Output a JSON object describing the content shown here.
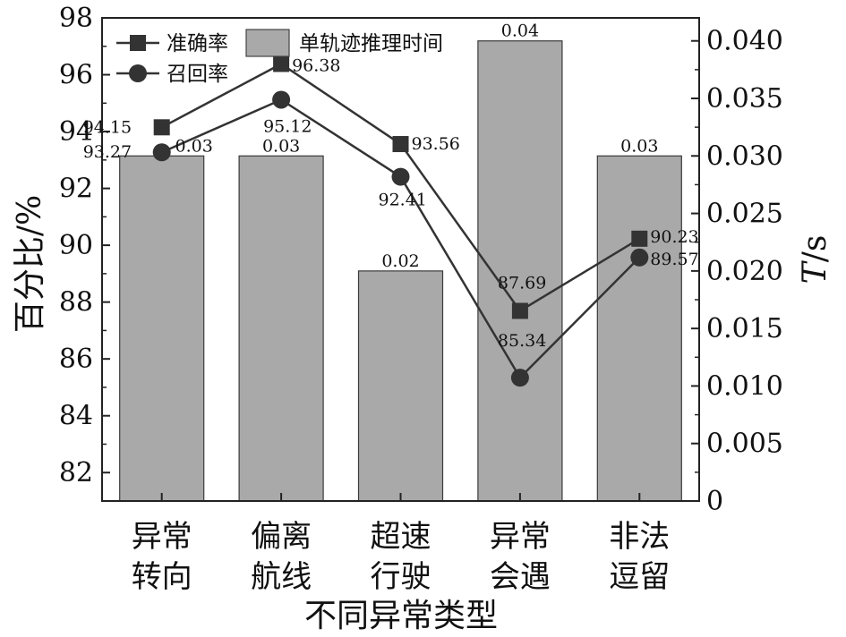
{
  "chart_data": {
    "type": "bar+line",
    "xlabel": "不同异常类型",
    "ylabel_left": "百分比/%",
    "ylabel_right_italic": "T",
    "ylabel_right_unit": "/s",
    "categories": [
      [
        "异常",
        "转向"
      ],
      [
        "偏离",
        "航线"
      ],
      [
        "超速",
        "行驶"
      ],
      [
        "异常",
        "会遇"
      ],
      [
        "非法",
        "逗留"
      ]
    ],
    "left_axis": {
      "min": 81,
      "max": 98,
      "ticks": [
        82,
        84,
        86,
        88,
        90,
        92,
        94,
        96,
        98
      ]
    },
    "right_axis": {
      "min": 0,
      "max": 0.042,
      "ticks": [
        "0",
        "0.005",
        "0.010",
        "0.015",
        "0.020",
        "0.025",
        "0.030",
        "0.035",
        "0.040"
      ]
    },
    "bars": {
      "name": "单轨迹推理时间",
      "values": [
        0.03,
        0.03,
        0.02,
        0.04,
        0.03
      ],
      "labels": [
        "0.03",
        "0.03",
        "0.02",
        "0.04",
        "0.03"
      ],
      "color": "#a9a9a9"
    },
    "series": [
      {
        "name": "准确率",
        "marker": "square",
        "values": [
          94.15,
          96.38,
          93.56,
          87.69,
          90.23
        ],
        "labels": [
          "94.15",
          "96.38",
          "93.56",
          "87.69",
          "90.23"
        ],
        "color": "#333333"
      },
      {
        "name": "召回率",
        "marker": "circle",
        "values": [
          93.27,
          95.12,
          92.41,
          85.34,
          89.57
        ],
        "labels": [
          "93.27",
          "95.12",
          "92.41",
          "85.34",
          "89.57"
        ],
        "color": "#333333"
      }
    ],
    "legend_position": "top-left",
    "grid": false
  }
}
